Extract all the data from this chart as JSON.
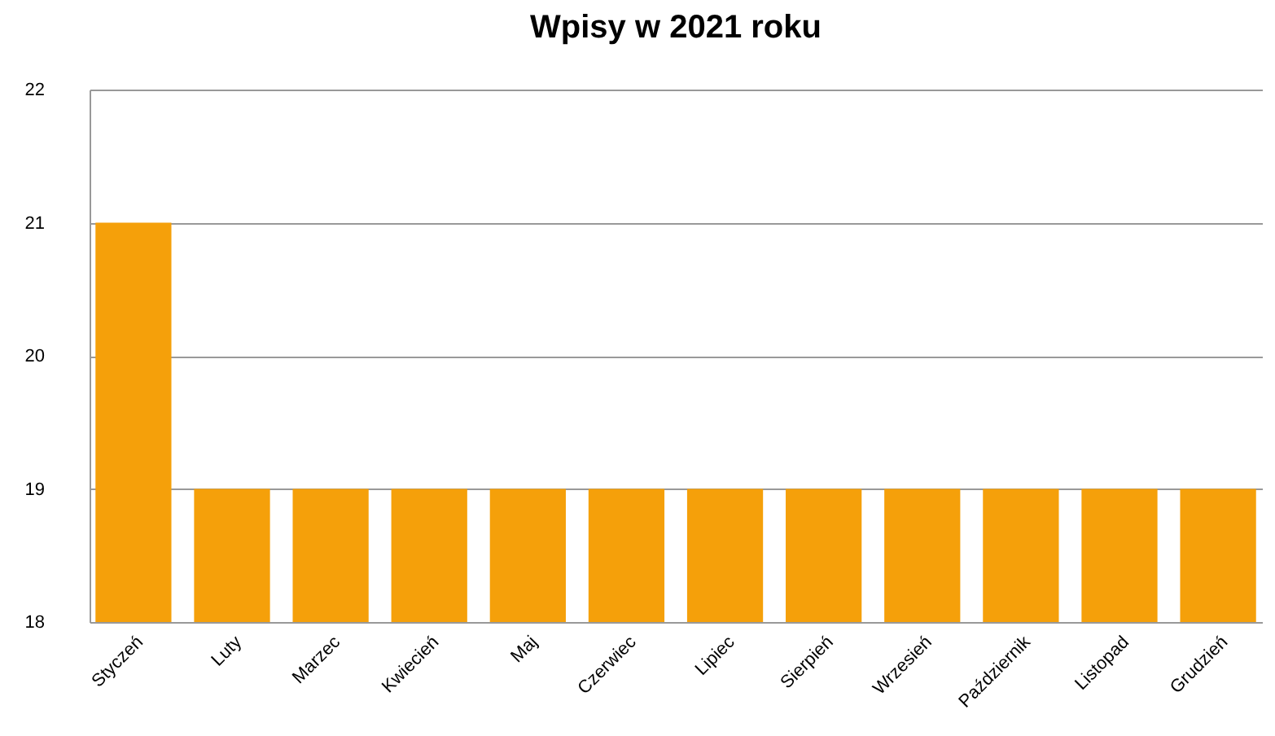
{
  "chart_data": {
    "type": "bar",
    "title": "Wpisy w 2021 roku",
    "categories": [
      "Styczeń",
      "Luty",
      "Marzec",
      "Kwiecień",
      "Maj",
      "Czerwiec",
      "Lipiec",
      "Sierpień",
      "Wrzesień",
      "Październik",
      "Listopad",
      "Grudzień"
    ],
    "values": [
      21,
      19,
      19,
      19,
      19,
      19,
      19,
      19,
      19,
      19,
      19,
      19
    ],
    "color": "#f5a00a",
    "ylim": [
      18,
      22
    ],
    "yticks": [
      18,
      19,
      20,
      21,
      22
    ],
    "grid": "y"
  }
}
